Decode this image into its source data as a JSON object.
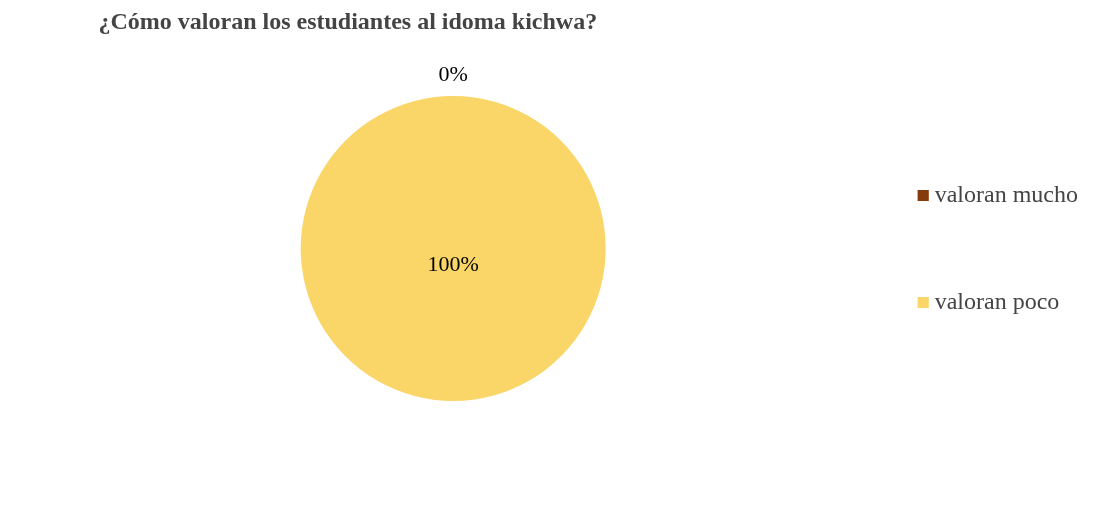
{
  "chart_data": {
    "type": "pie",
    "title": "¿Cómo valoran los estudiantes al idoma kichwa?",
    "categories": [
      "valoran mucho",
      "valoran poco"
    ],
    "values": [
      0,
      100
    ],
    "colors": [
      "#843c0c",
      "#f9d667"
    ],
    "value_labels": [
      "0%",
      "100%"
    ],
    "legend": "right"
  }
}
